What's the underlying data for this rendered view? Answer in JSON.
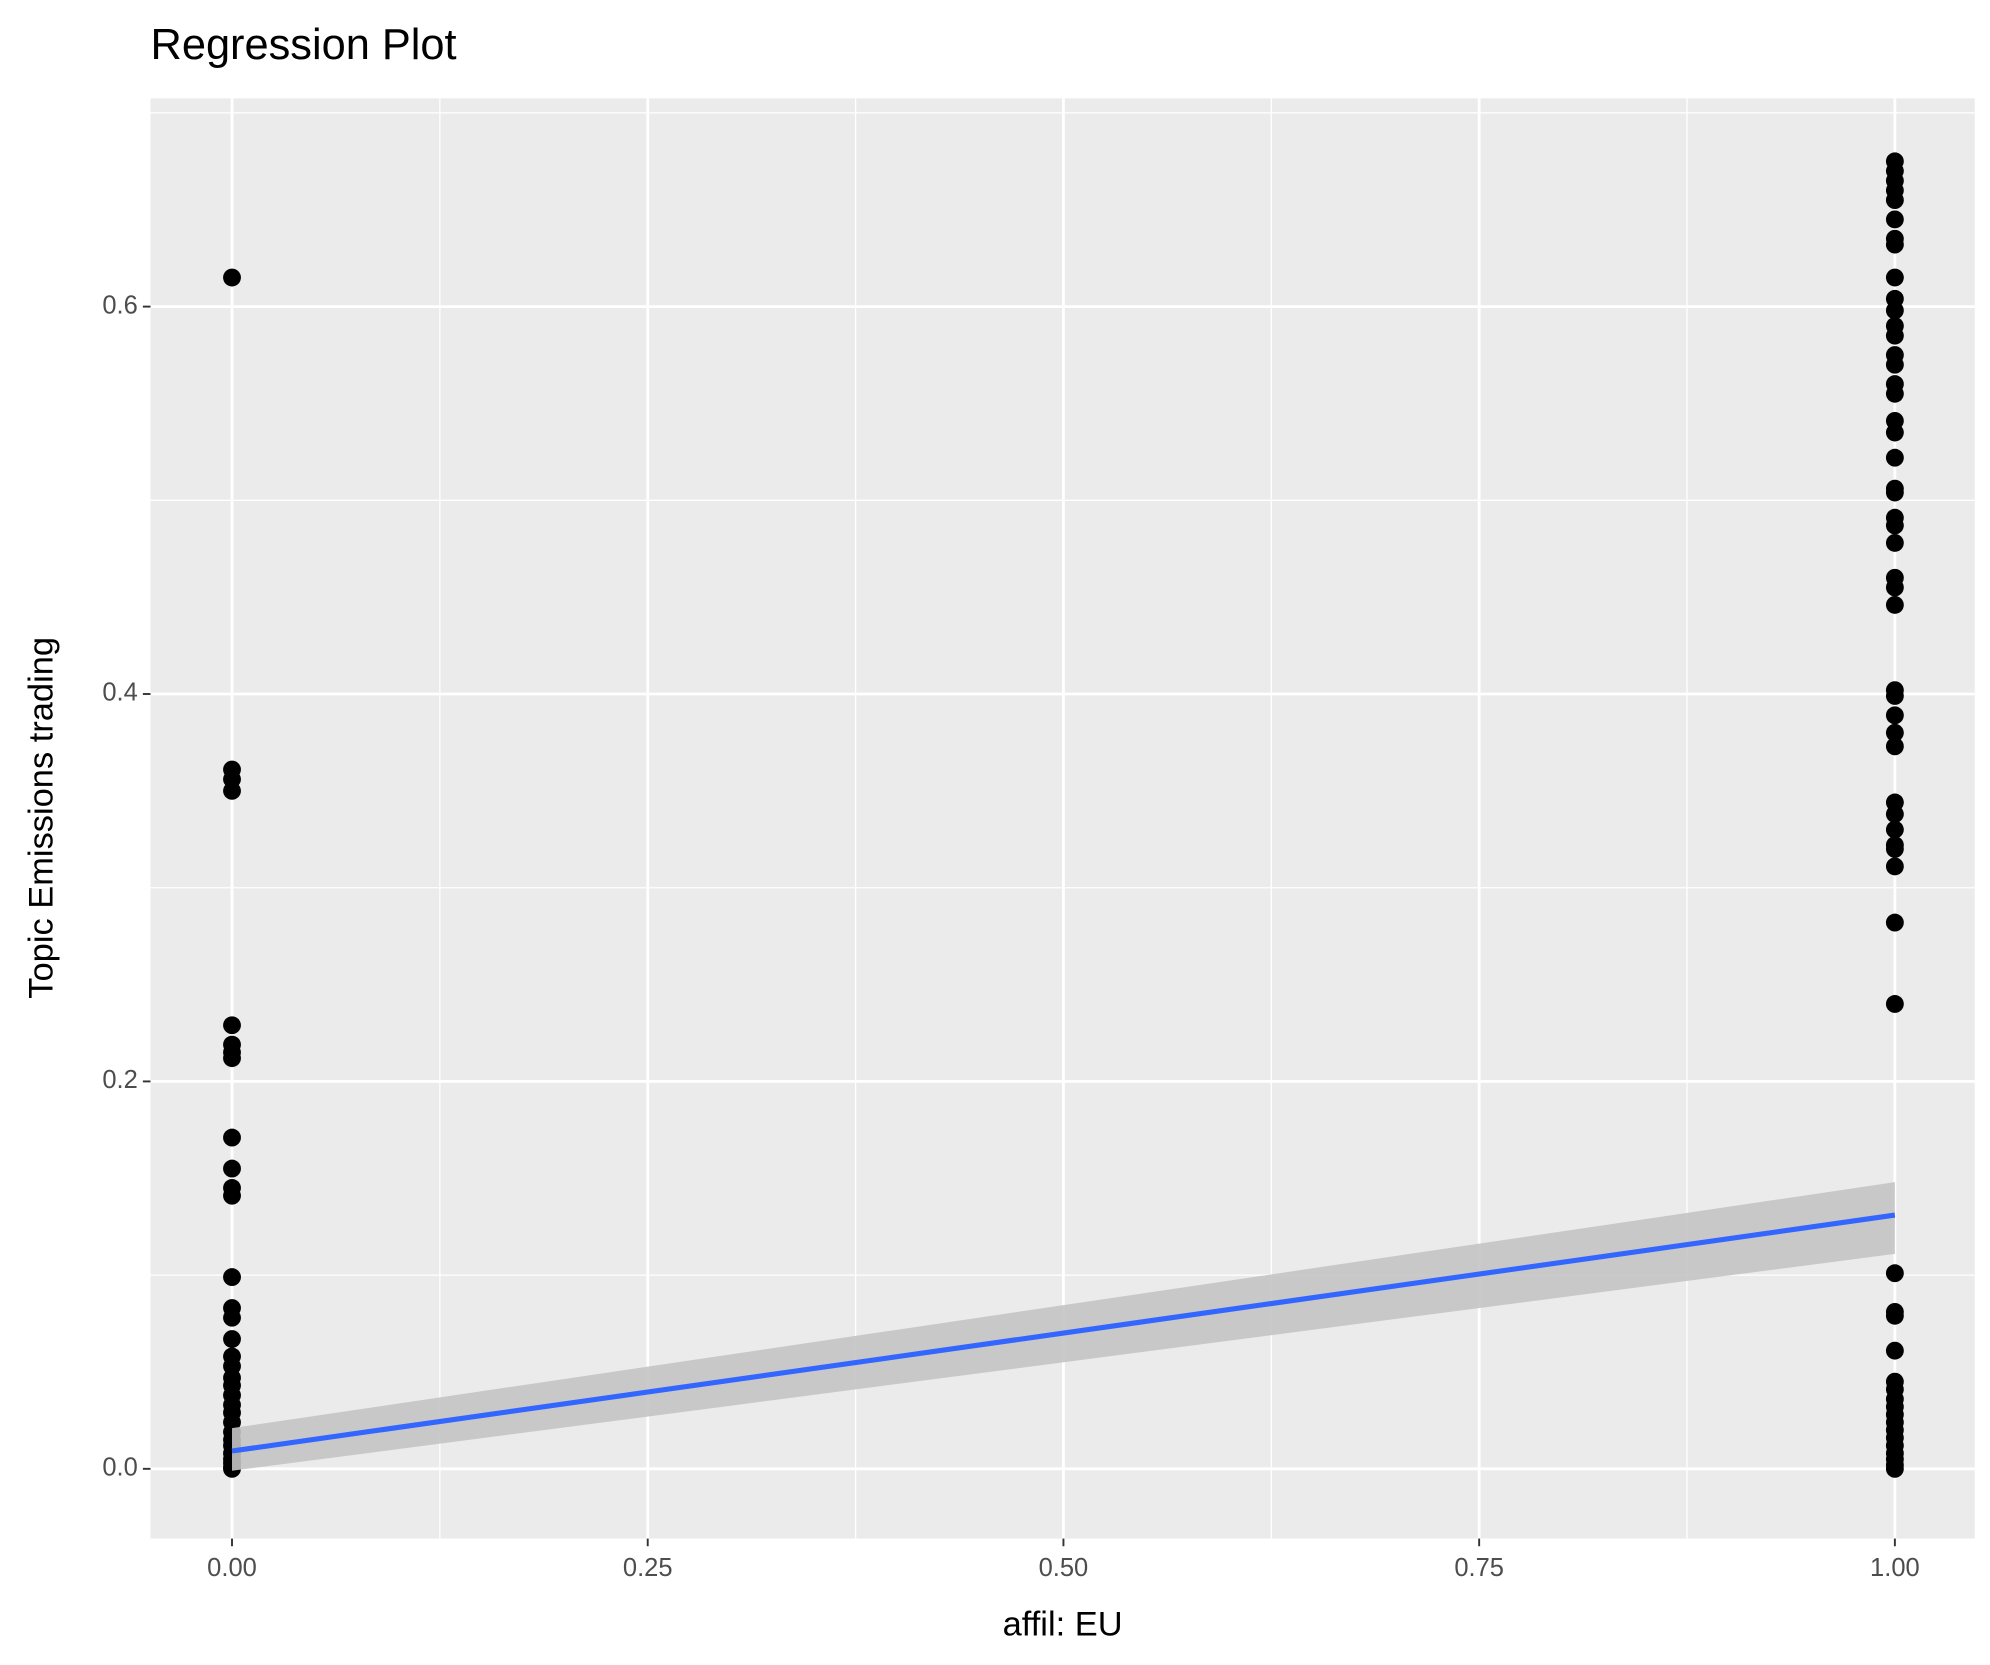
{
  "chart_data": {
    "type": "scatter",
    "title": "Regression Plot",
    "x_label": "affil: EU",
    "y_label": "Topic Emissions trading",
    "x": [
      0,
      0,
      0,
      0,
      0,
      0,
      0,
      0,
      0,
      0,
      0,
      0,
      0,
      0,
      0,
      0,
      0,
      0,
      0,
      0,
      0,
      0,
      0,
      0,
      0,
      0,
      0,
      0,
      0,
      0,
      0,
      0,
      1,
      1,
      1,
      1,
      1,
      1,
      1,
      1,
      1,
      1,
      1,
      1,
      1,
      1,
      1,
      1,
      1,
      1,
      1,
      1,
      1,
      1,
      1,
      1,
      1,
      1,
      1,
      1,
      1,
      1,
      1,
      1,
      1,
      1,
      1,
      1,
      1,
      1,
      1,
      1,
      1,
      1,
      1,
      1,
      1,
      1,
      1,
      1,
      1,
      1,
      1,
      1,
      1,
      1,
      1,
      1,
      1,
      1
    ],
    "y": [
      0.615,
      0.361,
      0.356,
      0.35,
      0.229,
      0.219,
      0.215,
      0.212,
      0.171,
      0.155,
      0.145,
      0.141,
      0.099,
      0.083,
      0.078,
      0.067,
      0.058,
      0.053,
      0.047,
      0.043,
      0.038,
      0.033,
      0.029,
      0.024,
      0.019,
      0.015,
      0.012,
      0.008,
      0.005,
      0.003,
      0.001,
      0.0,
      0.675,
      0.67,
      0.665,
      0.66,
      0.655,
      0.645,
      0.635,
      0.632,
      0.615,
      0.604,
      0.598,
      0.59,
      0.585,
      0.575,
      0.57,
      0.56,
      0.555,
      0.541,
      0.535,
      0.522,
      0.506,
      0.504,
      0.491,
      0.487,
      0.478,
      0.46,
      0.455,
      0.446,
      0.402,
      0.399,
      0.389,
      0.38,
      0.373,
      0.344,
      0.338,
      0.33,
      0.322,
      0.32,
      0.311,
      0.282,
      0.24,
      0.101,
      0.081,
      0.079,
      0.061,
      0.045,
      0.041,
      0.036,
      0.032,
      0.028,
      0.024,
      0.02,
      0.016,
      0.012,
      0.008,
      0.005,
      0.002,
      0.0
    ],
    "color": "#000000",
    "regression": {
      "x": [
        0,
        1
      ],
      "y": [
        0.0092,
        0.131
      ],
      "ymin": [
        -0.001,
        0.111
      ],
      "ymax": [
        0.021,
        0.148
      ],
      "color": "#3366ff",
      "band_color": "#c4c4c4"
    },
    "xlim": [
      -0.049,
      1.048
    ],
    "ylim": [
      -0.036,
      0.7075
    ],
    "xticks": [
      {
        "value": 0,
        "label": "0.00"
      },
      {
        "value": 0.25,
        "label": "0.25"
      },
      {
        "value": 0.5,
        "label": "0.50"
      },
      {
        "value": 0.75,
        "label": "0.75"
      },
      {
        "value": 1,
        "label": "1.00"
      }
    ],
    "yticks": [
      {
        "value": 0,
        "label": "0.0"
      },
      0.2,
      0.4,
      0.6
    ],
    "grid": true
  }
}
